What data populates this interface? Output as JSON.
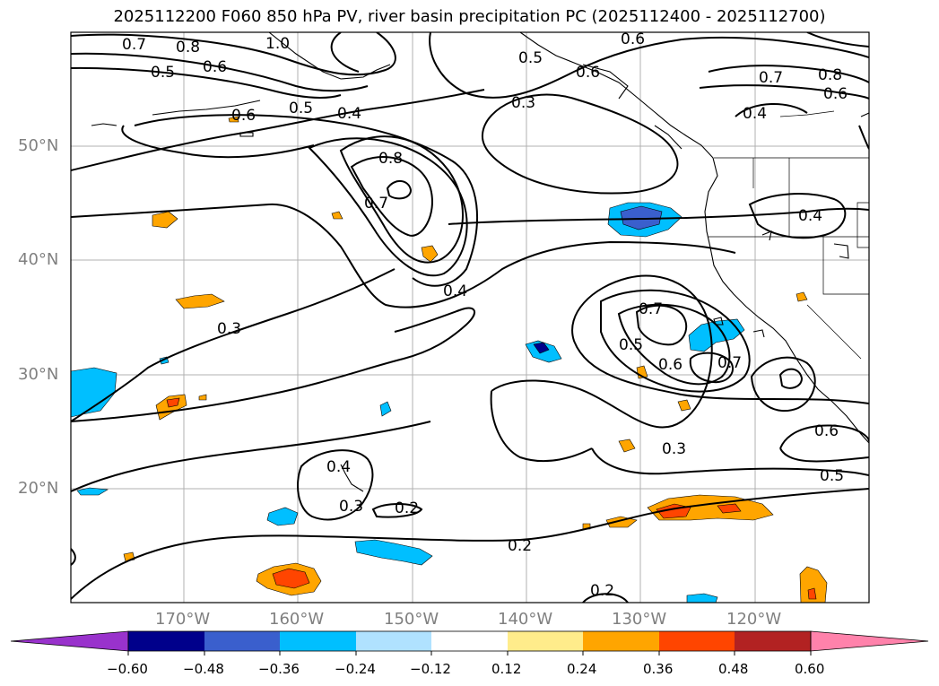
{
  "title": "2025112200 F060 850 hPa PV, river basin precipitation PC (2025112400 - 2025112700)",
  "latitude_labels": [
    "50°N",
    "40°N",
    "30°N",
    "20°N"
  ],
  "longitude_labels": [
    "170°W",
    "160°W",
    "150°W",
    "140°W",
    "130°W",
    "120°W"
  ],
  "contour_labels": [
    "0.7",
    "0.8",
    "1.0",
    "0.5",
    "0.6",
    "0.6",
    "0.5",
    "0.4",
    "0.5",
    "0.6",
    "0.3",
    "0.6",
    "0.7",
    "0.8",
    "0.6",
    "0.8",
    "0.4",
    "0.7",
    "0.4",
    "0.4",
    "0.3",
    "0.7",
    "0.5",
    "0.6",
    "0.7",
    "0.3",
    "0.6",
    "0.5",
    "0.4",
    "0.3",
    "0.2",
    "0.2",
    "0.2"
  ],
  "colorbar": {
    "ticks": [
      "−0.60",
      "−0.48",
      "−0.36",
      "−0.24",
      "−0.12",
      "0.12",
      "0.24",
      "0.36",
      "0.48",
      "0.60"
    ],
    "colors": [
      "#9932cc",
      "#00008b",
      "#3a5fcd",
      "#00bfff",
      "#b0e2ff",
      "#ffffff",
      "#ffec8b",
      "#ffa500",
      "#ff4500",
      "#b22222",
      "#ff82ab"
    ]
  }
}
